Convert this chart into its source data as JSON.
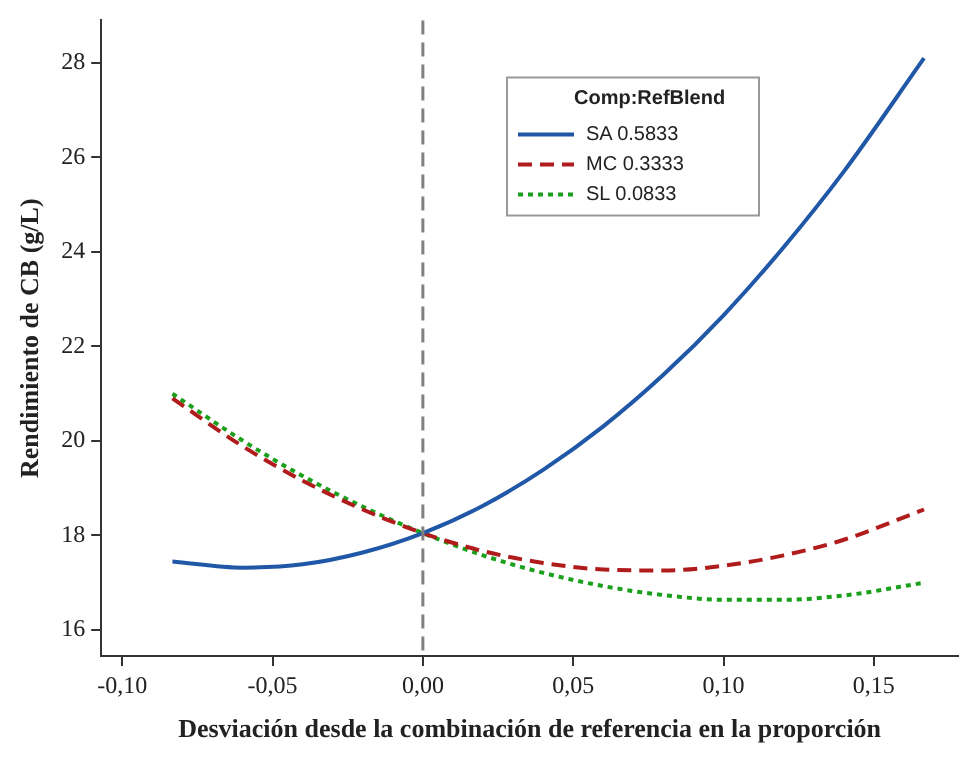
{
  "chart_data": {
    "type": "line",
    "xlabel": "Desviación desde la combinación de referencia en la proporción",
    "ylabel": "Rendimiento de CB (g/L)",
    "legend_title": "Comp:RefBlend",
    "legend": "top right",
    "grid": false,
    "marker": "none",
    "x": [
      -0.0833,
      -0.06,
      -0.04,
      -0.02,
      0,
      0.02,
      0.04,
      0.06,
      0.08,
      0.1,
      0.12,
      0.14,
      0.1667
    ],
    "xlim": [
      -0.107,
      0.178
    ],
    "xticks": [
      {
        "value": -0.1,
        "label": "-0,10"
      },
      {
        "value": -0.05,
        "label": "-0,05"
      },
      {
        "value": 0,
        "label": "0,00"
      },
      {
        "value": 0.05,
        "label": "0,05"
      },
      {
        "value": 0.1,
        "label": "0,10"
      },
      {
        "value": 0.15,
        "label": "0,15"
      }
    ],
    "ylim": [
      15.45,
      28.9
    ],
    "yticks": [
      16,
      18,
      20,
      22,
      24,
      26,
      28
    ],
    "ref_lines": [
      {
        "axis": "x",
        "value": 0,
        "color": "#808080",
        "line_style": "dashed"
      }
    ],
    "series": [
      {
        "name": "SA 0.5833",
        "color": "#2057a7",
        "line_style": "solid",
        "values": [
          17.45,
          17.32,
          17.39,
          17.64,
          18.05,
          18.63,
          19.39,
          20.31,
          21.4,
          22.66,
          24.1,
          25.7,
          28.1
        ]
      },
      {
        "name": "MC 0.3333",
        "color": "#b01c1c",
        "line_style": "dashed",
        "values": [
          20.9,
          19.89,
          19.16,
          18.55,
          18.05,
          17.67,
          17.42,
          17.28,
          17.26,
          17.36,
          17.58,
          17.91,
          18.55
        ]
      },
      {
        "name": "SL 0.0833",
        "color": "#1aa01a",
        "line_style": "dotted",
        "values": [
          21.0,
          20.01,
          19.26,
          18.61,
          18.05,
          17.58,
          17.21,
          16.93,
          16.74,
          16.64,
          16.64,
          16.73,
          17.0
        ]
      }
    ]
  }
}
